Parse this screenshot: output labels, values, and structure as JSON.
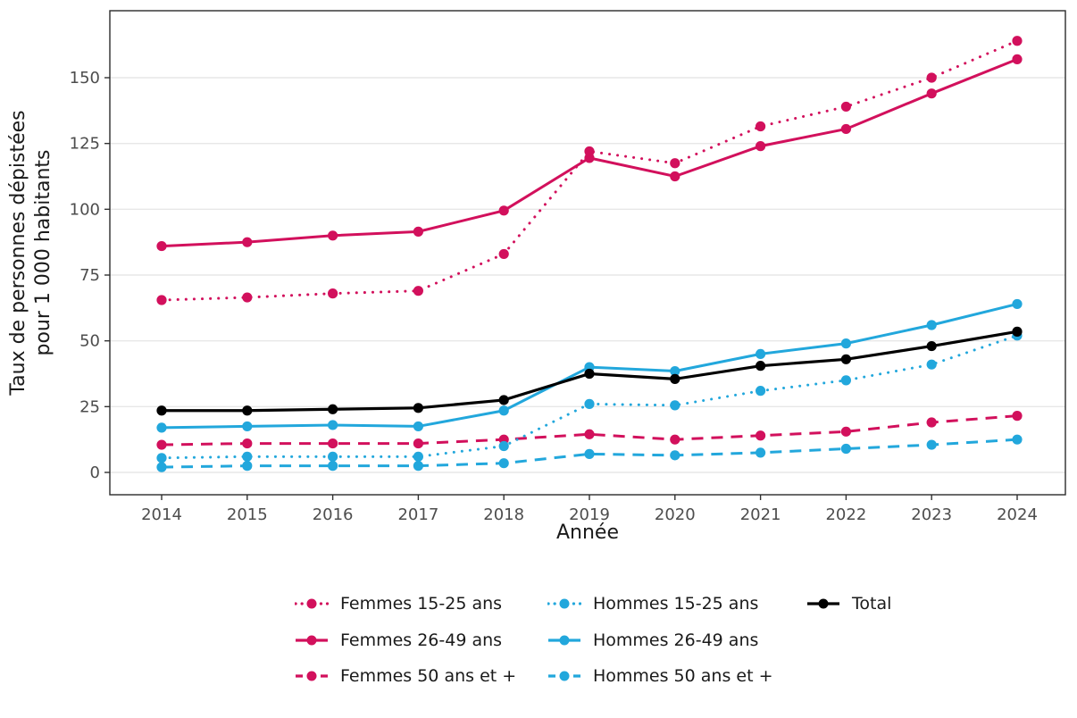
{
  "chart_data": {
    "type": "line",
    "title": "",
    "xlabel": "Année",
    "ylabel": "Taux de personnes dépistées pour 1 000 habitants",
    "ylabel_lines": [
      "Taux de personnes dépistées",
      "pour 1 000 habitants"
    ],
    "x": [
      2014,
      2015,
      2016,
      2017,
      2018,
      2019,
      2020,
      2021,
      2022,
      2023,
      2024
    ],
    "y_ticks": [
      0,
      25,
      50,
      75,
      100,
      125,
      150
    ],
    "ylim": [
      -8,
      175
    ],
    "grid": "horizontal-major-only",
    "legend_position": "bottom",
    "legend_columns": 3,
    "colors": {
      "femmes": "#D2105C",
      "hommes": "#22A7DC",
      "total": "#000000",
      "gridline": "#E7E7E7",
      "tick_text": "#4d4d4d"
    },
    "series": [
      {
        "id": "femmes-15-25",
        "name": "Femmes 15-25 ans",
        "color": "#D2105C",
        "linestyle": "dotted",
        "values": [
          65.5,
          66.5,
          68,
          69,
          83,
          122,
          117.5,
          131.5,
          139,
          150,
          164
        ]
      },
      {
        "id": "femmes-26-49",
        "name": "Femmes 26-49 ans",
        "color": "#D2105C",
        "linestyle": "solid",
        "values": [
          86,
          87.5,
          90,
          91.5,
          99.5,
          119.5,
          112.5,
          124,
          130.5,
          144,
          157
        ]
      },
      {
        "id": "femmes-50-plus",
        "name": "Femmes 50 ans et +",
        "color": "#D2105C",
        "linestyle": "dashed",
        "values": [
          10.5,
          11,
          11,
          11,
          12.5,
          14.5,
          12.5,
          14,
          15.5,
          19,
          21.5
        ]
      },
      {
        "id": "hommes-15-25",
        "name": "Hommes 15-25 ans",
        "color": "#22A7DC",
        "linestyle": "dotted",
        "values": [
          5.5,
          6,
          6,
          6,
          10,
          26,
          25.5,
          31,
          35,
          41,
          52
        ]
      },
      {
        "id": "hommes-26-49",
        "name": "Hommes 26-49 ans",
        "color": "#22A7DC",
        "linestyle": "solid",
        "values": [
          17,
          17.5,
          18,
          17.5,
          23.5,
          40,
          38.5,
          45,
          49,
          56,
          64
        ]
      },
      {
        "id": "hommes-50-plus",
        "name": "Hommes 50 ans et +",
        "color": "#22A7DC",
        "linestyle": "dashed",
        "values": [
          2,
          2.5,
          2.5,
          2.5,
          3.5,
          7,
          6.5,
          7.5,
          9,
          10.5,
          12.5
        ]
      },
      {
        "id": "total",
        "name": "Total",
        "color": "#000000",
        "linestyle": "solid",
        "values": [
          23.5,
          23.5,
          24,
          24.5,
          27.5,
          37.5,
          35.5,
          40.5,
          43,
          48,
          53.5
        ]
      }
    ]
  }
}
